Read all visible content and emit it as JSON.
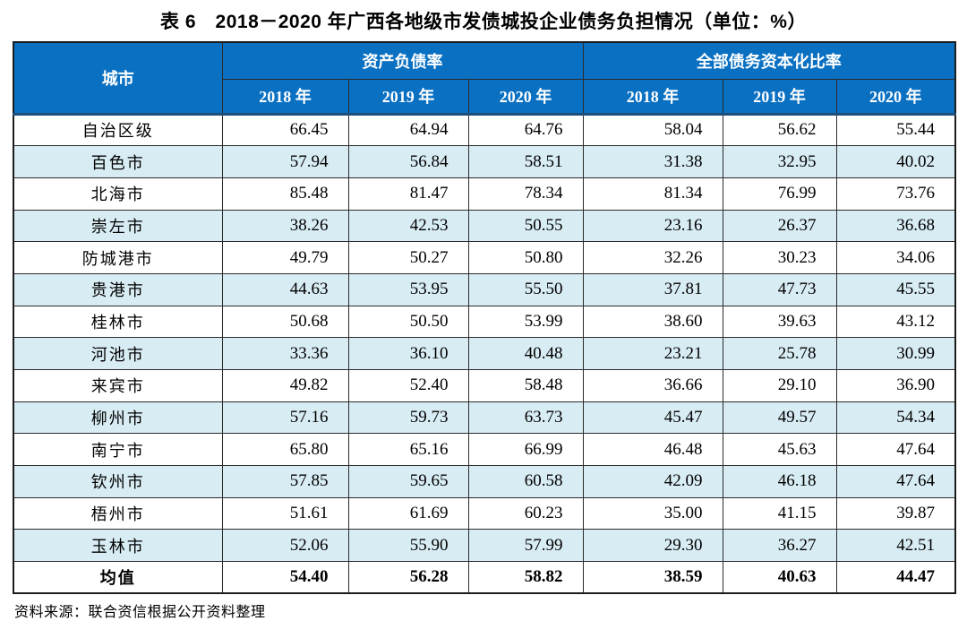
{
  "title": "表 6　2018－2020 年广西各地级市发债城投企业债务负担情况（单位：%）",
  "table": {
    "corner_header": "城市",
    "groups": [
      {
        "label": "资产负债率",
        "years": [
          "2018 年",
          "2019 年",
          "2020 年"
        ]
      },
      {
        "label": "全部债务资本化比率",
        "years": [
          "2018 年",
          "2019 年",
          "2020 年"
        ]
      }
    ],
    "rows": [
      {
        "city": "自治区级",
        "values": [
          "66.45",
          "64.94",
          "64.76",
          "58.04",
          "56.62",
          "55.44"
        ],
        "striped": false,
        "bold": false
      },
      {
        "city": "百色市",
        "values": [
          "57.94",
          "56.84",
          "58.51",
          "31.38",
          "32.95",
          "40.02"
        ],
        "striped": true,
        "bold": false
      },
      {
        "city": "北海市",
        "values": [
          "85.48",
          "81.47",
          "78.34",
          "81.34",
          "76.99",
          "73.76"
        ],
        "striped": false,
        "bold": false
      },
      {
        "city": "崇左市",
        "values": [
          "38.26",
          "42.53",
          "50.55",
          "23.16",
          "26.37",
          "36.68"
        ],
        "striped": true,
        "bold": false
      },
      {
        "city": "防城港市",
        "values": [
          "49.79",
          "50.27",
          "50.80",
          "32.26",
          "30.23",
          "34.06"
        ],
        "striped": false,
        "bold": false
      },
      {
        "city": "贵港市",
        "values": [
          "44.63",
          "53.95",
          "55.50",
          "37.81",
          "47.73",
          "45.55"
        ],
        "striped": true,
        "bold": false
      },
      {
        "city": "桂林市",
        "values": [
          "50.68",
          "50.50",
          "53.99",
          "38.60",
          "39.63",
          "43.12"
        ],
        "striped": false,
        "bold": false
      },
      {
        "city": "河池市",
        "values": [
          "33.36",
          "36.10",
          "40.48",
          "23.21",
          "25.78",
          "30.99"
        ],
        "striped": true,
        "bold": false
      },
      {
        "city": "来宾市",
        "values": [
          "49.82",
          "52.40",
          "58.48",
          "36.66",
          "29.10",
          "36.90"
        ],
        "striped": false,
        "bold": false
      },
      {
        "city": "柳州市",
        "values": [
          "57.16",
          "59.73",
          "63.73",
          "45.47",
          "49.57",
          "54.34"
        ],
        "striped": true,
        "bold": false
      },
      {
        "city": "南宁市",
        "values": [
          "65.80",
          "65.16",
          "66.99",
          "46.48",
          "45.63",
          "47.64"
        ],
        "striped": false,
        "bold": false
      },
      {
        "city": "钦州市",
        "values": [
          "57.85",
          "59.65",
          "60.58",
          "42.09",
          "46.18",
          "47.64"
        ],
        "striped": true,
        "bold": false
      },
      {
        "city": "梧州市",
        "values": [
          "51.61",
          "61.69",
          "60.23",
          "35.00",
          "41.15",
          "39.87"
        ],
        "striped": false,
        "bold": false
      },
      {
        "city": "玉林市",
        "values": [
          "52.06",
          "55.90",
          "57.99",
          "29.30",
          "36.27",
          "42.51"
        ],
        "striped": true,
        "bold": false
      },
      {
        "city": "均值",
        "values": [
          "54.40",
          "56.28",
          "58.82",
          "38.59",
          "40.63",
          "44.47"
        ],
        "striped": false,
        "bold": true
      }
    ]
  },
  "footer": {
    "source": "资料来源：联合资信根据公开资料整理"
  },
  "colors": {
    "header_bg": "#0a70c2",
    "header_text": "#ffffff",
    "stripe_bg": "#d8ecf3",
    "header_divider": "#1f4e79",
    "border": "#2b2b2b"
  }
}
